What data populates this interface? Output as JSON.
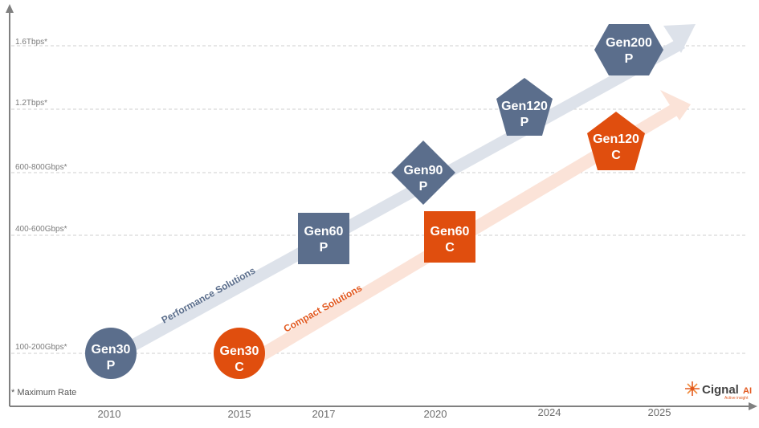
{
  "colors": {
    "performance": "#5b6e8c",
    "performance_band": "#dde2ea",
    "compact": "#e04e0e",
    "compact_band": "#fbe3d8",
    "axis": "#808080",
    "grid": "#cfcfcf"
  },
  "y_axis": {
    "levels": [
      "1.6Tbps*",
      "1.2Tbps*",
      "600-800Gbps*",
      "400-600Gbps*",
      "100-200Gbps*"
    ]
  },
  "x_axis": {
    "years": [
      "2010",
      "2015",
      "2017",
      "2020",
      "2024",
      "2025"
    ]
  },
  "bands": {
    "performance_label": "Performance Solutions",
    "compact_label": "Compact Solutions"
  },
  "nodes": [
    {
      "id": "gen30p",
      "line1": "Gen30",
      "line2": "P",
      "shape": "circle",
      "family": "performance"
    },
    {
      "id": "gen60p",
      "line1": "Gen60",
      "line2": "P",
      "shape": "square",
      "family": "performance"
    },
    {
      "id": "gen90p",
      "line1": "Gen90",
      "line2": "P",
      "shape": "diamond",
      "family": "performance"
    },
    {
      "id": "gen120p",
      "line1": "Gen120",
      "line2": "P",
      "shape": "pentagon",
      "family": "performance"
    },
    {
      "id": "gen200p",
      "line1": "Gen200",
      "line2": "P",
      "shape": "hexagon",
      "family": "performance"
    },
    {
      "id": "gen30c",
      "line1": "Gen30",
      "line2": "C",
      "shape": "circle",
      "family": "compact"
    },
    {
      "id": "gen60c",
      "line1": "Gen60",
      "line2": "C",
      "shape": "square",
      "family": "compact"
    },
    {
      "id": "gen120c",
      "line1": "Gen120",
      "line2": "C",
      "shape": "pentagon",
      "family": "compact"
    }
  ],
  "footnote": "* Maximum Rate",
  "logo": {
    "name": "Cignal",
    "suffix": "AI",
    "tagline": "Active insight",
    "icon": "spark-icon"
  }
}
